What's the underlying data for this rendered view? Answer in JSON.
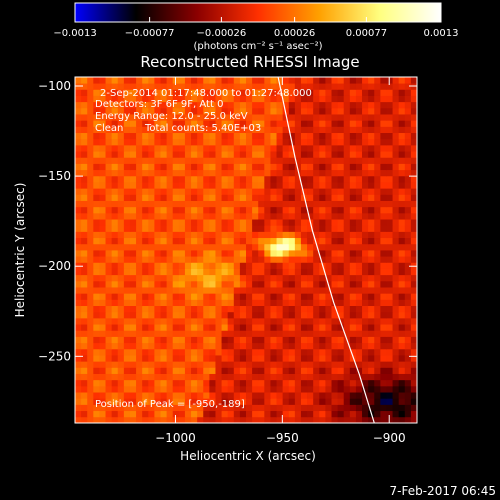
{
  "chart_data": {
    "type": "heatmap",
    "title": "Reconstructed RHESSI Image",
    "xlabel": "Heliocentric X (arcsec)",
    "ylabel": "Heliocentric Y (arcsec)",
    "xlim": [
      -1047,
      -887
    ],
    "ylim": [
      -287,
      -95
    ],
    "xticks": [
      -1000,
      -950,
      -900
    ],
    "xtick_labels": [
      "−1000",
      "−950",
      "−900"
    ],
    "yticks": [
      -250,
      -200,
      -150,
      -100
    ],
    "ytick_labels": [
      "−250",
      "−200",
      "−150",
      "−100"
    ],
    "colorbar": {
      "range": [
        -0.0013,
        0.0013
      ],
      "ticks": [
        -0.0013,
        -0.00077,
        -0.00026,
        0.00026,
        0.00077,
        0.0013
      ],
      "tick_labels": [
        "−0.0013",
        "−0.00077",
        "−0.00026",
        "0.00026",
        "0.00077",
        "0.0013"
      ],
      "unit_label": "(photons cm⁻² s⁻¹ asec⁻²)",
      "colormap": [
        "#0000ff",
        "#000000",
        "#8b0000",
        "#ff3000",
        "#ffa000",
        "#ffff80",
        "#ffffff"
      ]
    },
    "peak": {
      "x": -950,
      "y": -189,
      "value": 0.0013
    },
    "limb_curve": [
      {
        "x": -952,
        "y": -95
      },
      {
        "x": -944,
        "y": -140
      },
      {
        "x": -936,
        "y": -180
      },
      {
        "x": -926,
        "y": -220
      },
      {
        "x": -914,
        "y": -260
      },
      {
        "x": -907,
        "y": -287
      }
    ],
    "grid": false
  },
  "annotations": {
    "time_range": "2-Sep-2014 01:17:48.000 to 01:27:48.000",
    "detectors": "Detectors: 3F 6F 9F, Att 0",
    "energy": "Energy Range: 12.0 - 25.0 keV",
    "method": "Clean",
    "counts": "Total counts: 5.40E+03",
    "peak_position": "Position of Peak = [-950,-189]"
  },
  "footer": {
    "date": "7-Feb-2017 06:45"
  }
}
